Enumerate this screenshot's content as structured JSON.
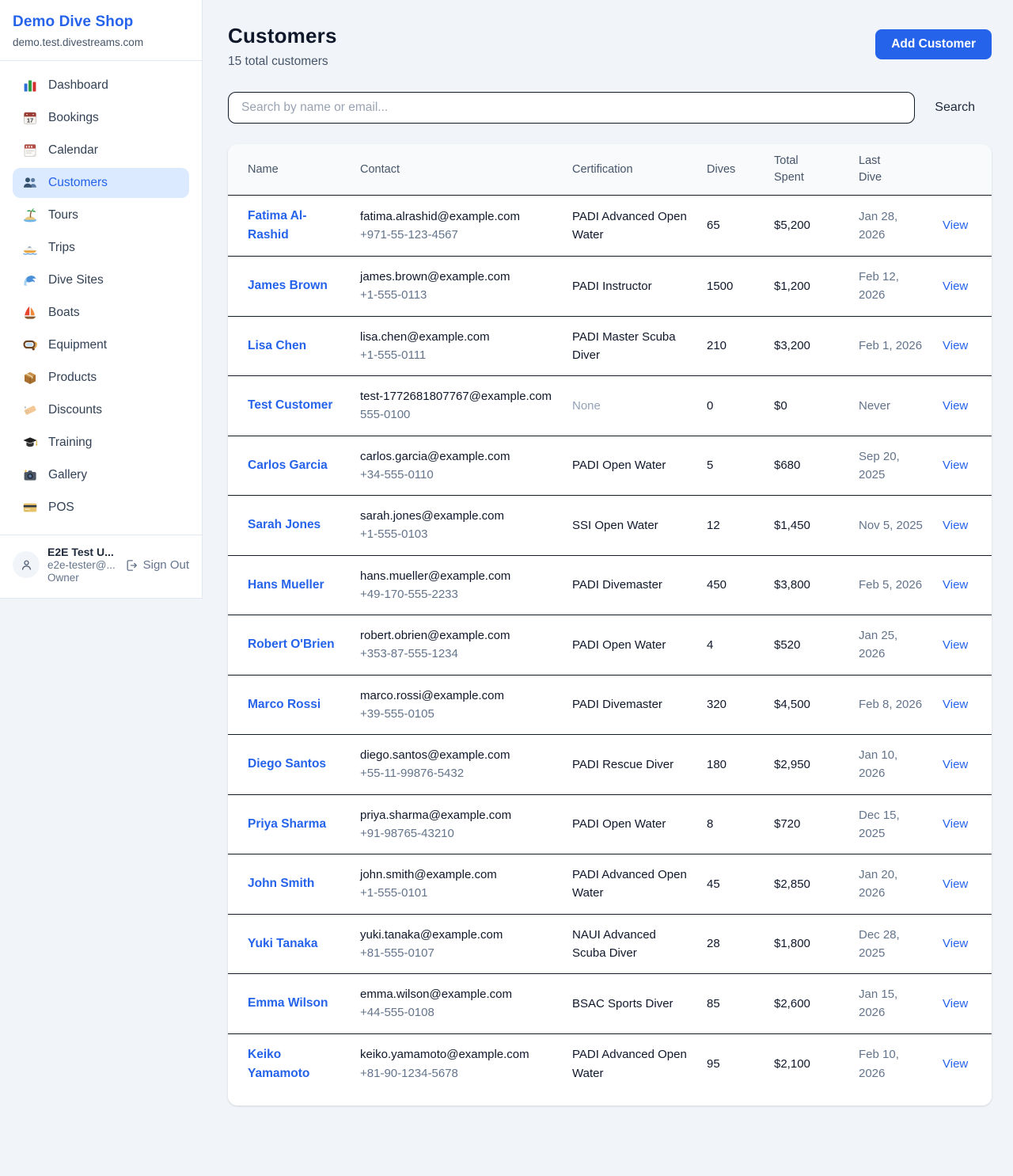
{
  "colors": {
    "accent": "#2563eb",
    "active_nav_bg": "#dbeafe",
    "page_bg": "#f1f5f9",
    "table_header_bg": "#f8fafc",
    "divider": "#151c28",
    "muted_text": "#64748b"
  },
  "sidebar": {
    "brand": {
      "title": "Demo Dive Shop",
      "subtitle": "demo.test.divestreams.com"
    },
    "items": [
      {
        "label": "Dashboard",
        "icon": "bar-chart",
        "active": false
      },
      {
        "label": "Bookings",
        "icon": "calendar-date",
        "active": false
      },
      {
        "label": "Calendar",
        "icon": "tear-calendar",
        "active": false
      },
      {
        "label": "Customers",
        "icon": "people",
        "active": true
      },
      {
        "label": "Tours",
        "icon": "island",
        "active": false
      },
      {
        "label": "Trips",
        "icon": "speedboat",
        "active": false
      },
      {
        "label": "Dive Sites",
        "icon": "wave",
        "active": false
      },
      {
        "label": "Boats",
        "icon": "sailboat",
        "active": false
      },
      {
        "label": "Equipment",
        "icon": "dive-mask",
        "active": false
      },
      {
        "label": "Products",
        "icon": "package",
        "active": false
      },
      {
        "label": "Discounts",
        "icon": "tag",
        "active": false
      },
      {
        "label": "Training",
        "icon": "graduation-cap",
        "active": false
      },
      {
        "label": "Gallery",
        "icon": "camera",
        "active": false
      },
      {
        "label": "POS",
        "icon": "credit-card",
        "active": false
      }
    ],
    "user": {
      "name": "E2E Test U...",
      "email": "e2e-tester@...",
      "role": "Owner",
      "sign_out_label": "Sign Out"
    }
  },
  "header": {
    "title": "Customers",
    "subtitle": "15 total customers",
    "add_button_label": "Add Customer"
  },
  "search": {
    "placeholder": "Search by name or email...",
    "button_label": "Search"
  },
  "table": {
    "columns": [
      "Name",
      "Contact",
      "Certification",
      "Dives",
      "Total Spent",
      "Last Dive",
      ""
    ],
    "view_label": "View",
    "rows": [
      {
        "name": "Fatima Al-Rashid",
        "email": "fatima.alrashid@example.com",
        "phone": "+971-55-123-4567",
        "certification": "PADI Advanced Open Water",
        "dives": "65",
        "total_spent": "$5,200",
        "last_dive": "Jan 28, 2026"
      },
      {
        "name": "James Brown",
        "email": "james.brown@example.com",
        "phone": "+1-555-0113",
        "certification": "PADI Instructor",
        "dives": "1500",
        "total_spent": "$1,200",
        "last_dive": "Feb 12, 2026"
      },
      {
        "name": "Lisa Chen",
        "email": "lisa.chen@example.com",
        "phone": "+1-555-0111",
        "certification": "PADI Master Scuba Diver",
        "dives": "210",
        "total_spent": "$3,200",
        "last_dive": "Feb 1, 2026"
      },
      {
        "name": "Test Customer",
        "email": "test-1772681807767@example.com",
        "phone": "555-0100",
        "certification": "None",
        "dives": "0",
        "total_spent": "$0",
        "last_dive": "Never"
      },
      {
        "name": "Carlos Garcia",
        "email": "carlos.garcia@example.com",
        "phone": "+34-555-0110",
        "certification": "PADI Open Water",
        "dives": "5",
        "total_spent": "$680",
        "last_dive": "Sep 20, 2025"
      },
      {
        "name": "Sarah Jones",
        "email": "sarah.jones@example.com",
        "phone": "+1-555-0103",
        "certification": "SSI Open Water",
        "dives": "12",
        "total_spent": "$1,450",
        "last_dive": "Nov 5, 2025"
      },
      {
        "name": "Hans Mueller",
        "email": "hans.mueller@example.com",
        "phone": "+49-170-555-2233",
        "certification": "PADI Divemaster",
        "dives": "450",
        "total_spent": "$3,800",
        "last_dive": "Feb 5, 2026"
      },
      {
        "name": "Robert O'Brien",
        "email": "robert.obrien@example.com",
        "phone": "+353-87-555-1234",
        "certification": "PADI Open Water",
        "dives": "4",
        "total_spent": "$520",
        "last_dive": "Jan 25, 2026"
      },
      {
        "name": "Marco Rossi",
        "email": "marco.rossi@example.com",
        "phone": "+39-555-0105",
        "certification": "PADI Divemaster",
        "dives": "320",
        "total_spent": "$4,500",
        "last_dive": "Feb 8, 2026"
      },
      {
        "name": "Diego Santos",
        "email": "diego.santos@example.com",
        "phone": "+55-11-99876-5432",
        "certification": "PADI Rescue Diver",
        "dives": "180",
        "total_spent": "$2,950",
        "last_dive": "Jan 10, 2026"
      },
      {
        "name": "Priya Sharma",
        "email": "priya.sharma@example.com",
        "phone": "+91-98765-43210",
        "certification": "PADI Open Water",
        "dives": "8",
        "total_spent": "$720",
        "last_dive": "Dec 15, 2025"
      },
      {
        "name": "John Smith",
        "email": "john.smith@example.com",
        "phone": "+1-555-0101",
        "certification": "PADI Advanced Open Water",
        "dives": "45",
        "total_spent": "$2,850",
        "last_dive": "Jan 20, 2026"
      },
      {
        "name": "Yuki Tanaka",
        "email": "yuki.tanaka@example.com",
        "phone": "+81-555-0107",
        "certification": "NAUI Advanced Scuba Diver",
        "dives": "28",
        "total_spent": "$1,800",
        "last_dive": "Dec 28, 2025"
      },
      {
        "name": "Emma Wilson",
        "email": "emma.wilson@example.com",
        "phone": "+44-555-0108",
        "certification": "BSAC Sports Diver",
        "dives": "85",
        "total_spent": "$2,600",
        "last_dive": "Jan 15, 2026"
      },
      {
        "name": "Keiko Yamamoto",
        "email": "keiko.yamamoto@example.com",
        "phone": "+81-90-1234-5678",
        "certification": "PADI Advanced Open Water",
        "dives": "95",
        "total_spent": "$2,100",
        "last_dive": "Feb 10, 2026"
      }
    ]
  }
}
